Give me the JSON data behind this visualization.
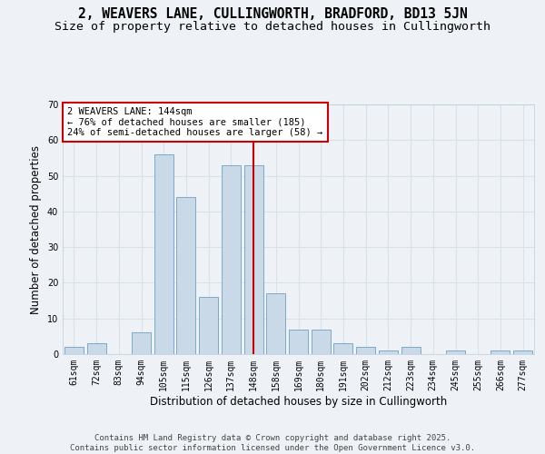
{
  "title_line1": "2, WEAVERS LANE, CULLINGWORTH, BRADFORD, BD13 5JN",
  "title_line2": "Size of property relative to detached houses in Cullingworth",
  "xlabel": "Distribution of detached houses by size in Cullingworth",
  "ylabel": "Number of detached properties",
  "categories": [
    "61sqm",
    "72sqm",
    "83sqm",
    "94sqm",
    "105sqm",
    "115sqm",
    "126sqm",
    "137sqm",
    "148sqm",
    "158sqm",
    "169sqm",
    "180sqm",
    "191sqm",
    "202sqm",
    "212sqm",
    "223sqm",
    "234sqm",
    "245sqm",
    "255sqm",
    "266sqm",
    "277sqm"
  ],
  "values": [
    2,
    3,
    0,
    6,
    56,
    44,
    16,
    53,
    53,
    17,
    7,
    7,
    3,
    2,
    1,
    2,
    0,
    1,
    0,
    1,
    1
  ],
  "bar_color": "#c9d9e8",
  "bar_edge_color": "#7aaac8",
  "subject_line_index": 8,
  "subject_label": "2 WEAVERS LANE: 144sqm",
  "annotation_line1": "← 76% of detached houses are smaller (185)",
  "annotation_line2": "24% of semi-detached houses are larger (58) →",
  "annotation_box_color": "#ffffff",
  "annotation_box_edge_color": "#cc0000",
  "subject_line_color": "#cc0000",
  "ylim": [
    0,
    70
  ],
  "yticks": [
    0,
    10,
    20,
    30,
    40,
    50,
    60,
    70
  ],
  "grid_color": "#d8e0e8",
  "background_color": "#eef2f7",
  "footer_line1": "Contains HM Land Registry data © Crown copyright and database right 2025.",
  "footer_line2": "Contains public sector information licensed under the Open Government Licence v3.0.",
  "title_fontsize": 10.5,
  "subtitle_fontsize": 9.5,
  "axis_label_fontsize": 8.5,
  "tick_fontsize": 7,
  "footer_fontsize": 6.5,
  "annotation_fontsize": 7.5
}
